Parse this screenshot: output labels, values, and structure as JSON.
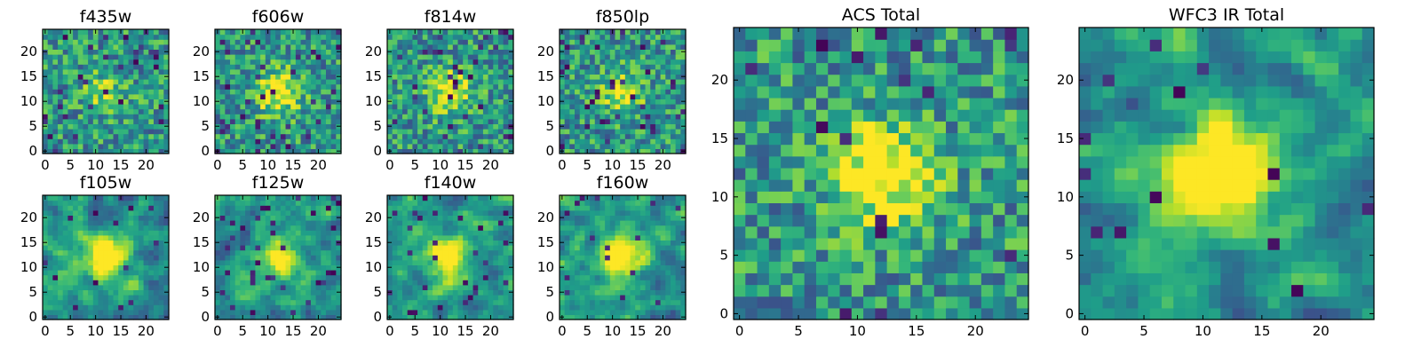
{
  "chart_data": [
    {
      "type": "heatmap",
      "title": "f435w",
      "xticks": [
        0,
        5,
        10,
        15,
        20
      ],
      "yticks": [
        0,
        5,
        10,
        15,
        20
      ],
      "xlim": [
        0,
        24
      ],
      "ylim": [
        0,
        24
      ],
      "grid_size": 25,
      "colormap": "viridis",
      "seed": 11,
      "blob_strength": 0.18,
      "outlier_rate": 0.05,
      "smooth": false
    },
    {
      "type": "heatmap",
      "title": "f606w",
      "xticks": [
        0,
        5,
        10,
        15,
        20
      ],
      "yticks": [
        0,
        5,
        10,
        15,
        20
      ],
      "xlim": [
        0,
        24
      ],
      "ylim": [
        0,
        24
      ],
      "grid_size": 25,
      "colormap": "viridis",
      "seed": 23,
      "blob_strength": 0.35,
      "outlier_rate": 0.05,
      "smooth": false
    },
    {
      "type": "heatmap",
      "title": "f814w",
      "xticks": [
        0,
        5,
        10,
        15,
        20
      ],
      "yticks": [
        0,
        5,
        10,
        15,
        20
      ],
      "xlim": [
        0,
        24
      ],
      "ylim": [
        0,
        24
      ],
      "grid_size": 25,
      "colormap": "viridis",
      "seed": 37,
      "blob_strength": 0.3,
      "outlier_rate": 0.05,
      "smooth": false
    },
    {
      "type": "heatmap",
      "title": "f850lp",
      "xticks": [
        0,
        5,
        10,
        15,
        20
      ],
      "yticks": [
        0,
        5,
        10,
        15,
        20
      ],
      "xlim": [
        0,
        24
      ],
      "ylim": [
        0,
        24
      ],
      "grid_size": 25,
      "colormap": "viridis",
      "seed": 41,
      "blob_strength": 0.25,
      "outlier_rate": 0.07,
      "smooth": false
    },
    {
      "type": "heatmap",
      "title": "f105w",
      "xticks": [
        0,
        5,
        10,
        15,
        20
      ],
      "yticks": [
        0,
        5,
        10,
        15,
        20
      ],
      "xlim": [
        0,
        24
      ],
      "ylim": [
        0,
        24
      ],
      "grid_size": 25,
      "colormap": "viridis",
      "seed": 53,
      "blob_strength": 0.4,
      "outlier_rate": 0.03,
      "smooth": true
    },
    {
      "type": "heatmap",
      "title": "f125w",
      "xticks": [
        0,
        5,
        10,
        15,
        20
      ],
      "yticks": [
        0,
        5,
        10,
        15,
        20
      ],
      "xlim": [
        0,
        24
      ],
      "ylim": [
        0,
        24
      ],
      "grid_size": 25,
      "colormap": "viridis",
      "seed": 67,
      "blob_strength": 0.3,
      "outlier_rate": 0.04,
      "smooth": true
    },
    {
      "type": "heatmap",
      "title": "f140w",
      "xticks": [
        0,
        5,
        10,
        15,
        20
      ],
      "yticks": [
        0,
        5,
        10,
        15,
        20
      ],
      "xlim": [
        0,
        24
      ],
      "ylim": [
        0,
        24
      ],
      "grid_size": 25,
      "colormap": "viridis",
      "seed": 71,
      "blob_strength": 0.35,
      "outlier_rate": 0.04,
      "smooth": true
    },
    {
      "type": "heatmap",
      "title": "f160w",
      "xticks": [
        0,
        5,
        10,
        15,
        20
      ],
      "yticks": [
        0,
        5,
        10,
        15,
        20
      ],
      "xlim": [
        0,
        24
      ],
      "ylim": [
        0,
        24
      ],
      "grid_size": 25,
      "colormap": "viridis",
      "seed": 83,
      "blob_strength": 0.5,
      "outlier_rate": 0.03,
      "smooth": true
    },
    {
      "type": "heatmap",
      "title": "ACS Total",
      "xticks": [
        0,
        5,
        10,
        15,
        20
      ],
      "yticks": [
        0,
        5,
        10,
        15,
        20
      ],
      "xlim": [
        0,
        24
      ],
      "ylim": [
        0,
        24
      ],
      "grid_size": 25,
      "colormap": "viridis",
      "seed": 97,
      "blob_strength": 0.4,
      "outlier_rate": 0.03,
      "smooth": false
    },
    {
      "type": "heatmap",
      "title": "WFC3 IR Total",
      "xticks": [
        0,
        5,
        10,
        15,
        20
      ],
      "yticks": [
        0,
        5,
        10,
        15,
        20
      ],
      "xlim": [
        0,
        24
      ],
      "ylim": [
        0,
        24
      ],
      "grid_size": 25,
      "colormap": "viridis",
      "seed": 101,
      "blob_strength": 0.55,
      "outlier_rate": 0.02,
      "smooth": true
    }
  ]
}
